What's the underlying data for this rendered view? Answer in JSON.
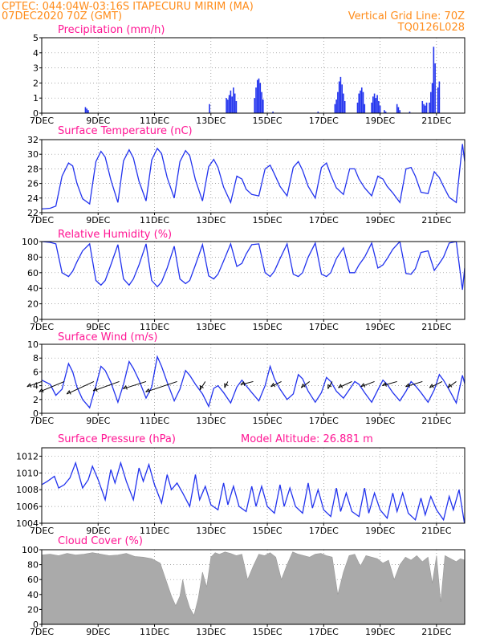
{
  "header": {
    "line1": "CPTEC:   044:04W-03:16S   ITAPECURU MIRIM (MA)",
    "line2": "07DEC2020 70Z (GMT)",
    "grid_note": "Vertical Grid Line: 70Z",
    "code": "TQ0126L028"
  },
  "x_axis": {
    "start_day": 7,
    "end_day": 22,
    "tick_days": [
      7,
      9,
      11,
      13,
      15,
      17,
      19,
      21
    ],
    "tick_labels": [
      "7DEC",
      "9DEC",
      "11DEC",
      "13DEC",
      "15DEC",
      "17DEC",
      "19DEC",
      "21DEC"
    ]
  },
  "colors": {
    "header": "#ff8c1a",
    "title": "#ff1493",
    "series": "#2233ee",
    "cloud": "#aaaaaa"
  },
  "chart_data": [
    {
      "key": "precip",
      "type": "bar",
      "title": "Precipitation (mm/h)",
      "ylim": [
        0,
        5
      ],
      "yticks": [
        0,
        1,
        2,
        3,
        4,
        5
      ],
      "x": [
        8.55,
        8.6,
        8.65,
        12.95,
        13.55,
        13.6,
        13.65,
        13.7,
        13.75,
        13.8,
        13.85,
        13.9,
        14.55,
        14.6,
        14.65,
        14.7,
        14.75,
        14.8,
        14.85,
        15.2,
        16.8,
        17.4,
        17.45,
        17.5,
        17.55,
        17.6,
        17.65,
        17.7,
        17.75,
        18.2,
        18.25,
        18.3,
        18.35,
        18.4,
        18.45,
        18.7,
        18.75,
        18.8,
        18.85,
        18.9,
        18.95,
        19.0,
        19.15,
        19.2,
        19.6,
        19.65,
        19.7,
        20.05,
        20.5,
        20.55,
        20.6,
        20.65,
        20.75,
        20.8,
        20.85,
        20.9,
        20.95,
        21.05,
        21.1
      ],
      "y": [
        0.4,
        0.3,
        0.2,
        0.6,
        1.0,
        0.9,
        1.2,
        1.5,
        1.1,
        1.7,
        1.3,
        0.8,
        1.0,
        1.7,
        2.2,
        2.3,
        2.0,
        1.4,
        0.9,
        0.1,
        0.1,
        0.6,
        0.9,
        1.4,
        2.1,
        2.4,
        1.9,
        1.3,
        0.8,
        0.7,
        1.3,
        1.5,
        1.7,
        1.4,
        0.6,
        0.7,
        1.1,
        1.3,
        1.0,
        1.2,
        0.8,
        0.5,
        0.2,
        0.1,
        0.6,
        0.4,
        0.2,
        0.1,
        0.8,
        0.6,
        0.5,
        0.7,
        0.7,
        1.4,
        2.0,
        4.4,
        3.3,
        1.7,
        2.1
      ]
    },
    {
      "key": "temp",
      "type": "line",
      "title": "Surface Temperature (nC)",
      "ylim": [
        22,
        32
      ],
      "yticks": [
        22,
        24,
        26,
        28,
        30,
        32
      ],
      "x": [
        7.0,
        7.3,
        7.5,
        7.72,
        7.95,
        8.1,
        8.25,
        8.45,
        8.7,
        8.92,
        9.1,
        9.25,
        9.45,
        9.7,
        9.9,
        10.1,
        10.25,
        10.45,
        10.7,
        10.9,
        11.1,
        11.25,
        11.45,
        11.7,
        11.9,
        12.1,
        12.25,
        12.45,
        12.7,
        12.92,
        13.1,
        13.25,
        13.45,
        13.7,
        13.92,
        14.1,
        14.25,
        14.45,
        14.7,
        14.92,
        15.1,
        15.25,
        15.45,
        15.7,
        15.92,
        16.1,
        16.25,
        16.45,
        16.7,
        16.92,
        17.1,
        17.25,
        17.45,
        17.7,
        17.92,
        18.1,
        18.25,
        18.45,
        18.7,
        18.92,
        19.1,
        19.25,
        19.45,
        19.7,
        19.92,
        20.1,
        20.25,
        20.45,
        20.7,
        20.92,
        21.1,
        21.25,
        21.45,
        21.7,
        21.92,
        22.0
      ],
      "y": [
        22.5,
        22.6,
        22.9,
        27.0,
        28.8,
        28.4,
        26.0,
        23.9,
        23.2,
        29.0,
        30.4,
        29.6,
        26.5,
        23.4,
        29.1,
        30.6,
        29.5,
        26.3,
        23.6,
        29.2,
        30.8,
        30.1,
        26.8,
        24.0,
        29.0,
        30.5,
        29.8,
        26.5,
        23.6,
        28.3,
        29.3,
        28.2,
        25.5,
        23.4,
        27.0,
        26.6,
        25.2,
        24.5,
        24.3,
        28.0,
        28.5,
        27.3,
        25.6,
        24.3,
        28.2,
        29.0,
        27.8,
        25.6,
        24.0,
        28.2,
        28.8,
        27.2,
        25.4,
        24.5,
        28.0,
        28.0,
        26.6,
        25.4,
        24.3,
        27.0,
        26.6,
        25.6,
        24.7,
        23.4,
        28.0,
        28.2,
        27.0,
        24.8,
        24.6,
        27.6,
        26.8,
        25.6,
        24.1,
        23.4,
        31.4,
        29.0
      ]
    },
    {
      "key": "rh",
      "type": "line",
      "title": "Relative Humidity (%)",
      "ylim": [
        0,
        100
      ],
      "yticks": [
        0,
        20,
        40,
        60,
        80,
        100
      ],
      "x": [
        7.0,
        7.3,
        7.5,
        7.72,
        7.95,
        8.1,
        8.25,
        8.45,
        8.7,
        8.92,
        9.1,
        9.25,
        9.45,
        9.7,
        9.9,
        10.1,
        10.25,
        10.45,
        10.7,
        10.9,
        11.1,
        11.25,
        11.45,
        11.7,
        11.9,
        12.1,
        12.25,
        12.45,
        12.7,
        12.92,
        13.1,
        13.25,
        13.45,
        13.7,
        13.92,
        14.1,
        14.25,
        14.45,
        14.7,
        14.92,
        15.1,
        15.25,
        15.45,
        15.7,
        15.92,
        16.1,
        16.25,
        16.45,
        16.7,
        16.92,
        17.1,
        17.25,
        17.45,
        17.7,
        17.92,
        18.1,
        18.25,
        18.45,
        18.7,
        18.92,
        19.1,
        19.25,
        19.45,
        19.7,
        19.92,
        20.1,
        20.25,
        20.45,
        20.7,
        20.92,
        21.1,
        21.25,
        21.45,
        21.7,
        21.92,
        22.0
      ],
      "y": [
        100,
        99,
        97,
        60,
        55,
        62,
        74,
        88,
        97,
        50,
        44,
        50,
        70,
        96,
        52,
        44,
        52,
        70,
        97,
        50,
        42,
        48,
        66,
        94,
        52,
        46,
        50,
        70,
        96,
        56,
        52,
        58,
        75,
        97,
        68,
        72,
        84,
        96,
        97,
        60,
        55,
        62,
        78,
        97,
        58,
        55,
        60,
        80,
        98,
        58,
        55,
        60,
        78,
        92,
        60,
        60,
        70,
        80,
        98,
        66,
        70,
        78,
        90,
        100,
        59,
        58,
        65,
        86,
        88,
        63,
        72,
        80,
        98,
        100,
        38,
        66
      ]
    },
    {
      "key": "wind",
      "type": "line",
      "title": "Surface Wind (m/s)",
      "ylim": [
        0,
        10
      ],
      "yticks": [
        0,
        2,
        4,
        6,
        8,
        10
      ],
      "x": [
        7.0,
        7.3,
        7.5,
        7.72,
        7.95,
        8.1,
        8.25,
        8.45,
        8.7,
        8.92,
        9.1,
        9.25,
        9.45,
        9.7,
        9.9,
        10.1,
        10.25,
        10.45,
        10.7,
        10.9,
        11.1,
        11.25,
        11.45,
        11.7,
        11.9,
        12.1,
        12.25,
        12.45,
        12.7,
        12.92,
        13.1,
        13.25,
        13.45,
        13.7,
        13.92,
        14.1,
        14.25,
        14.45,
        14.7,
        14.92,
        15.1,
        15.25,
        15.45,
        15.7,
        15.92,
        16.1,
        16.25,
        16.45,
        16.7,
        16.92,
        17.1,
        17.25,
        17.45,
        17.7,
        17.92,
        18.1,
        18.25,
        18.45,
        18.7,
        18.92,
        19.1,
        19.25,
        19.45,
        19.7,
        19.92,
        20.1,
        20.25,
        20.45,
        20.7,
        20.92,
        21.1,
        21.25,
        21.45,
        21.7,
        21.92,
        22.0
      ],
      "y": [
        4.8,
        4.2,
        2.6,
        3.5,
        7.2,
        6.0,
        3.8,
        2.0,
        0.8,
        4.0,
        6.8,
        6.2,
        4.5,
        1.6,
        4.2,
        7.5,
        6.5,
        4.8,
        2.2,
        3.8,
        8.2,
        6.8,
        4.5,
        1.8,
        3.5,
        6.2,
        5.5,
        4.2,
        2.8,
        1.0,
        3.6,
        4.0,
        3.0,
        1.5,
        3.8,
        4.8,
        4.0,
        3.0,
        1.8,
        4.0,
        6.8,
        5.0,
        3.5,
        2.0,
        2.8,
        5.6,
        5.0,
        3.2,
        1.6,
        3.0,
        5.2,
        4.6,
        3.2,
        2.2,
        3.5,
        4.6,
        4.2,
        3.0,
        1.6,
        3.4,
        4.8,
        4.2,
        3.0,
        1.8,
        3.2,
        4.6,
        4.0,
        3.0,
        1.6,
        3.4,
        5.6,
        4.8,
        3.4,
        1.5,
        5.5,
        4.3
      ],
      "barbs": [
        {
          "x": 7.0,
          "u": 1.4,
          "v": -0.5
        },
        {
          "x": 7.8,
          "u": 2.4,
          "v": -1.0
        },
        {
          "x": 8.85,
          "u": 2.6,
          "v": -1.2
        },
        {
          "x": 9.75,
          "u": 2.5,
          "v": -0.9
        },
        {
          "x": 10.7,
          "u": 2.2,
          "v": -0.7
        },
        {
          "x": 11.8,
          "u": 3.0,
          "v": -1.0
        },
        {
          "x": 12.8,
          "u": 0.5,
          "v": -0.8
        },
        {
          "x": 13.6,
          "u": 0.3,
          "v": -0.6
        },
        {
          "x": 14.5,
          "u": 1.2,
          "v": -0.3
        },
        {
          "x": 15.5,
          "u": 1.0,
          "v": -0.5
        },
        {
          "x": 16.5,
          "u": 0.8,
          "v": -0.6
        },
        {
          "x": 17.3,
          "u": 0.4,
          "v": -0.7
        },
        {
          "x": 18.0,
          "u": 1.3,
          "v": -0.6
        },
        {
          "x": 18.8,
          "u": 1.3,
          "v": -0.5
        },
        {
          "x": 19.6,
          "u": 1.4,
          "v": -0.4
        },
        {
          "x": 20.5,
          "u": 1.6,
          "v": -0.5
        },
        {
          "x": 21.2,
          "u": 1.2,
          "v": -0.6
        },
        {
          "x": 21.7,
          "u": 0.8,
          "v": -0.6
        }
      ]
    },
    {
      "key": "press",
      "type": "line",
      "title": "Surface Pressure (hPa)",
      "extra_label": "Model Altitude: 26.881  m",
      "ylim": [
        1004,
        1013
      ],
      "yticks": [
        1004,
        1006,
        1008,
        1010,
        1012
      ],
      "x": [
        7.0,
        7.2,
        7.45,
        7.6,
        7.8,
        8.0,
        8.2,
        8.45,
        8.65,
        8.8,
        9.0,
        9.25,
        9.45,
        9.6,
        9.8,
        10.0,
        10.25,
        10.45,
        10.6,
        10.8,
        11.0,
        11.25,
        11.45,
        11.6,
        11.8,
        12.0,
        12.25,
        12.45,
        12.6,
        12.8,
        13.0,
        13.25,
        13.45,
        13.6,
        13.8,
        14.0,
        14.25,
        14.45,
        14.6,
        14.8,
        15.0,
        15.25,
        15.45,
        15.6,
        15.8,
        16.0,
        16.25,
        16.45,
        16.6,
        16.8,
        17.0,
        17.25,
        17.45,
        17.6,
        17.8,
        18.0,
        18.25,
        18.45,
        18.6,
        18.8,
        19.0,
        19.25,
        19.45,
        19.6,
        19.8,
        20.0,
        20.25,
        20.45,
        20.6,
        20.8,
        21.0,
        21.25,
        21.45,
        21.6,
        21.8,
        22.0
      ],
      "y": [
        1008.6,
        1009.0,
        1009.6,
        1008.2,
        1008.6,
        1009.4,
        1011.2,
        1008.2,
        1009.2,
        1010.8,
        1009.2,
        1006.8,
        1010.4,
        1008.8,
        1011.2,
        1009.0,
        1006.8,
        1010.6,
        1009.0,
        1011.0,
        1008.6,
        1006.4,
        1009.8,
        1008.0,
        1008.8,
        1007.6,
        1006.0,
        1009.8,
        1006.8,
        1008.4,
        1006.2,
        1005.6,
        1008.8,
        1006.2,
        1008.4,
        1006.0,
        1005.4,
        1008.4,
        1006.0,
        1008.4,
        1006.0,
        1005.2,
        1008.6,
        1006.0,
        1008.2,
        1006.0,
        1005.2,
        1008.8,
        1005.8,
        1008.0,
        1005.6,
        1004.8,
        1008.2,
        1005.4,
        1007.6,
        1005.4,
        1004.8,
        1008.2,
        1005.2,
        1007.6,
        1005.6,
        1004.6,
        1007.6,
        1005.4,
        1007.6,
        1005.2,
        1004.4,
        1007.0,
        1005.0,
        1007.2,
        1005.6,
        1004.4,
        1007.2,
        1005.6,
        1008.0,
        1003.8
      ]
    },
    {
      "key": "cloud",
      "type": "area",
      "title": "Cloud Cover (%)",
      "ylim": [
        0,
        100
      ],
      "yticks": [
        0,
        20,
        40,
        60,
        80,
        100
      ],
      "x": [
        7.0,
        7.3,
        7.6,
        7.9,
        8.2,
        8.5,
        8.8,
        9.1,
        9.4,
        9.7,
        10.0,
        10.3,
        10.6,
        10.9,
        11.2,
        11.4,
        11.6,
        11.75,
        11.9,
        12.0,
        12.1,
        12.25,
        12.4,
        12.55,
        12.7,
        12.85,
        13.0,
        13.15,
        13.3,
        13.5,
        13.7,
        13.9,
        14.1,
        14.3,
        14.5,
        14.7,
        14.9,
        15.1,
        15.3,
        15.5,
        15.7,
        15.9,
        16.1,
        16.3,
        16.5,
        16.7,
        16.9,
        17.1,
        17.3,
        17.5,
        17.7,
        17.9,
        18.1,
        18.3,
        18.5,
        18.7,
        18.9,
        19.1,
        19.3,
        19.5,
        19.7,
        19.9,
        20.1,
        20.3,
        20.5,
        20.7,
        20.85,
        21.0,
        21.15,
        21.3,
        21.5,
        21.7,
        21.85,
        22.0
      ],
      "y": [
        93,
        94,
        92,
        95,
        93,
        94,
        96,
        94,
        92,
        93,
        95,
        91,
        90,
        88,
        82,
        60,
        38,
        25,
        38,
        60,
        40,
        22,
        12,
        35,
        70,
        50,
        90,
        96,
        94,
        97,
        95,
        92,
        94,
        60,
        78,
        94,
        92,
        96,
        90,
        60,
        80,
        97,
        94,
        92,
        90,
        94,
        95,
        92,
        90,
        40,
        70,
        92,
        94,
        78,
        92,
        90,
        88,
        82,
        86,
        60,
        80,
        90,
        86,
        92,
        84,
        90,
        55,
        92,
        30,
        92,
        88,
        84,
        88,
        86
      ]
    }
  ]
}
